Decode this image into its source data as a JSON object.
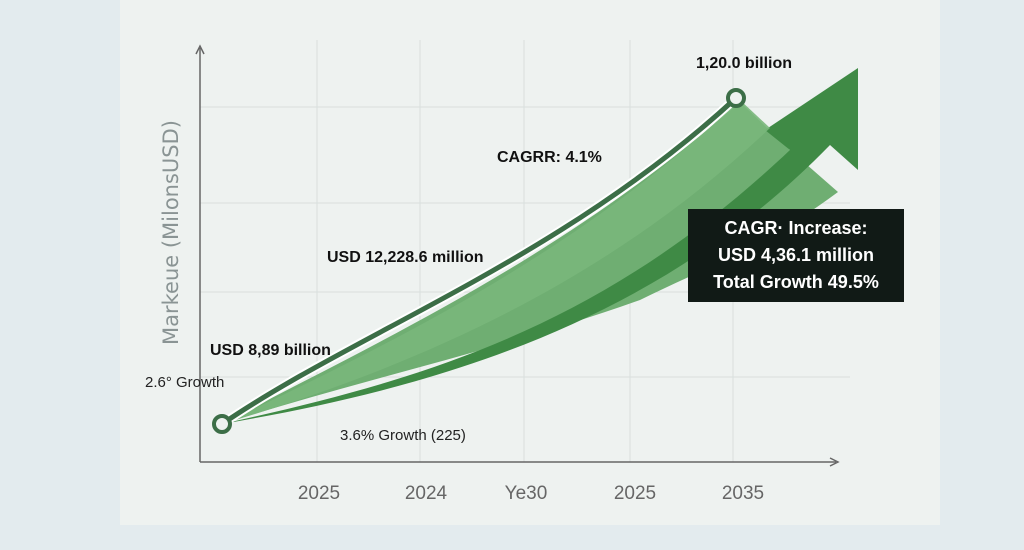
{
  "chart_data": {
    "type": "line",
    "title": "",
    "ylabel": "Markeue (MilonsUSD)",
    "xlabel": "",
    "x_tick_labels": [
      "2025",
      "2024",
      "Ye30",
      "2025",
      "2035"
    ],
    "grid": true,
    "points": [
      {
        "label": "start",
        "value_label": "USD 8,89 billion"
      },
      {
        "label": "end",
        "value_label": "1,20.0 billion"
      }
    ],
    "annotations": {
      "cagr": "CAGRR: 4.1%",
      "mid_value": "USD 12,228.6 million",
      "start_value": "USD 8,89 billion",
      "end_value": "1,20.0 billion",
      "left_growth": "2.6° Growth",
      "bottom_growth": "3.6% Growth (225)",
      "box_line1": "CAGR· Increase:",
      "box_line2": "USD 4,36.1 million",
      "box_line3": "Total Growth 49.5%"
    },
    "colors": {
      "line": "#3c6e47",
      "arrow_dark": "#3f8a45",
      "arrow_light": "#6fae72",
      "box": "#111a16"
    }
  }
}
